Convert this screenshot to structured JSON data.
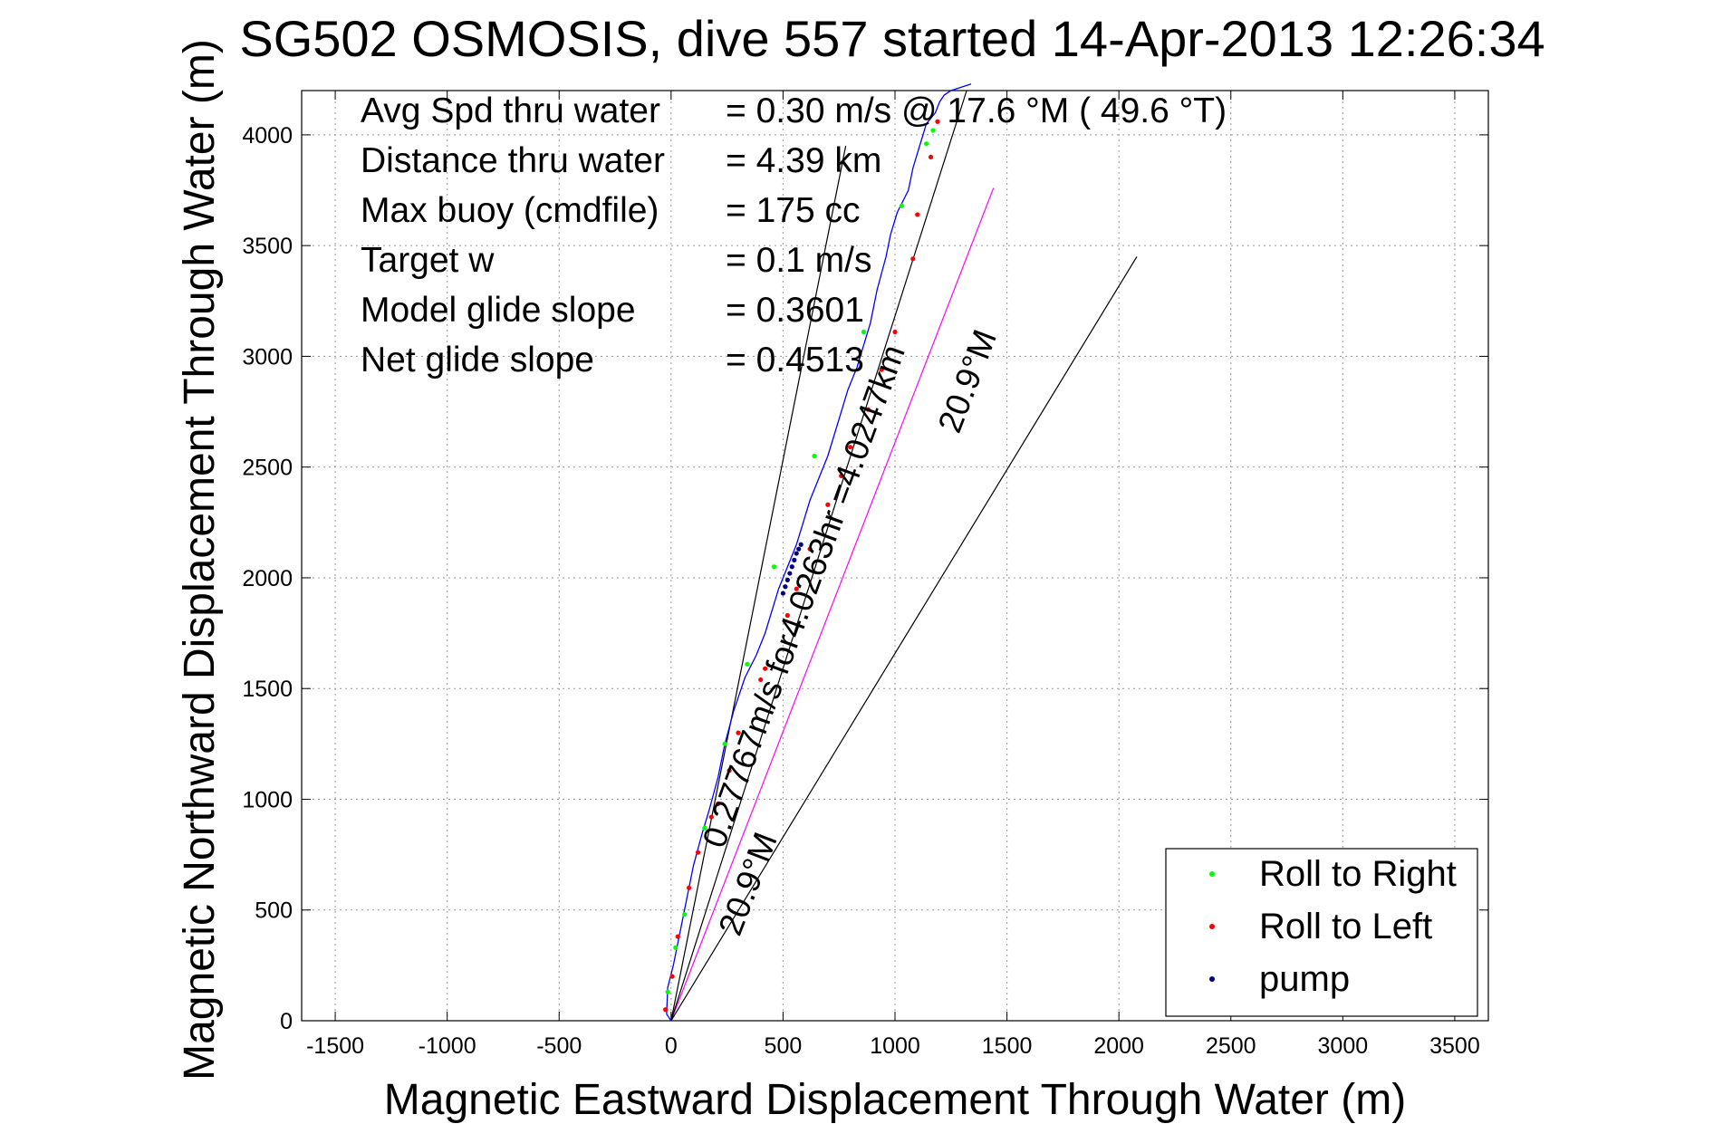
{
  "chart_data": {
    "type": "line",
    "title": "SG502 OSMOSIS, dive 557 started 14-Apr-2013 12:26:34",
    "xlabel": "Magnetic Eastward Displacement Through Water (m)",
    "ylabel": "Magnetic Northward Displacement Through Water (m)",
    "xlim": [
      -1650,
      3650
    ],
    "ylim": [
      0,
      4200
    ],
    "xticks": [
      -1500,
      -1000,
      -500,
      0,
      500,
      1000,
      1500,
      2000,
      2500,
      3000,
      3500
    ],
    "yticks": [
      0,
      500,
      1000,
      1500,
      2000,
      2500,
      3000,
      3500,
      4000
    ],
    "grid": true,
    "stats": [
      {
        "label": "Avg Spd thru water",
        "value": "=  0.30 m/s @  17.6 °M ( 49.6 °T)"
      },
      {
        "label": "Distance thru water",
        "value": "=  4.39 km"
      },
      {
        "label": "Max buoy (cmdfile)",
        "value": "= 175 cc"
      },
      {
        "label": "Target w",
        "value": "= 0.1 m/s"
      },
      {
        "label": "Model glide slope",
        "value": "= 0.3601"
      },
      {
        "label": "Net glide slope",
        "value": "= 0.4513"
      }
    ],
    "track": {
      "color": "#0000ff",
      "x": [
        0,
        -20,
        -15,
        10,
        40,
        70,
        100,
        140,
        170,
        210,
        240,
        280,
        330,
        380,
        420,
        450,
        480,
        520,
        560,
        590,
        620,
        660,
        700,
        730,
        760,
        790,
        830,
        860,
        890,
        920,
        960,
        980,
        1010,
        1060,
        1080,
        1110,
        1140,
        1180,
        1200,
        1220,
        1250,
        1280,
        1310,
        1340
      ],
      "y": [
        0,
        30,
        150,
        250,
        400,
        550,
        700,
        850,
        950,
        1100,
        1250,
        1400,
        1550,
        1650,
        1750,
        1850,
        1950,
        2050,
        2150,
        2250,
        2350,
        2450,
        2550,
        2650,
        2750,
        2850,
        2950,
        3050,
        3150,
        3300,
        3450,
        3550,
        3650,
        3750,
        3850,
        3950,
        4050,
        4100,
        4150,
        4180,
        4200,
        4210,
        4220,
        4230
      ]
    },
    "roll_right": {
      "x": [
        -15,
        20,
        60,
        150,
        240,
        340,
        460,
        640,
        860,
        1030,
        1140,
        1170
      ],
      "y": [
        130,
        330,
        480,
        870,
        1250,
        1610,
        2050,
        2550,
        3110,
        3680,
        3960,
        4020
      ]
    },
    "roll_left": {
      "x": [
        -25,
        5,
        30,
        80,
        120,
        180,
        210,
        260,
        300,
        400,
        420,
        520,
        560,
        620,
        700,
        760,
        800,
        880,
        940,
        1000,
        1080,
        1100,
        1160,
        1190
      ],
      "y": [
        50,
        200,
        380,
        600,
        760,
        920,
        980,
        1130,
        1300,
        1540,
        1590,
        1830,
        1950,
        2130,
        2330,
        2460,
        2590,
        2760,
        2940,
        3110,
        3440,
        3640,
        3900,
        4060
      ]
    },
    "pump": {
      "x": [
        500,
        510,
        520,
        530,
        540,
        550,
        560,
        570,
        580
      ],
      "y": [
        1930,
        1960,
        1990,
        2020,
        2050,
        2080,
        2110,
        2130,
        2150
      ]
    },
    "lines": [
      {
        "name": "ref-black-steep",
        "color": "#000000",
        "x": [
          0,
          780
        ],
        "y": [
          0,
          3950
        ]
      },
      {
        "name": "ref-magenta",
        "color": "#ff00ff",
        "x": [
          0,
          1440
        ],
        "y": [
          0,
          3760
        ]
      },
      {
        "name": "ref-black-shallow",
        "color": "#000000",
        "x": [
          0,
          2080
        ],
        "y": [
          0,
          3450
        ]
      },
      {
        "name": "ref-black-mid",
        "color": "#000000",
        "x": [
          0,
          1320
        ],
        "y": [
          0,
          4200
        ]
      }
    ],
    "annotations": [
      {
        "text": "20.9°M",
        "x": 1370,
        "y": 2870,
        "angle": -69
      },
      {
        "text": "0.27767m/s for4.0263hr =4.0247km",
        "x": 640,
        "y": 1900,
        "angle": -70
      },
      {
        "text": "20.9°M",
        "x": 390,
        "y": 600,
        "angle": -69
      }
    ],
    "legend": {
      "position": "bottom-right",
      "entries": [
        {
          "label": "Roll to Right",
          "color": "#00ff00"
        },
        {
          "label": "Roll to Left",
          "color": "#ff0000"
        },
        {
          "label": "pump",
          "color": "#000080"
        }
      ]
    }
  }
}
